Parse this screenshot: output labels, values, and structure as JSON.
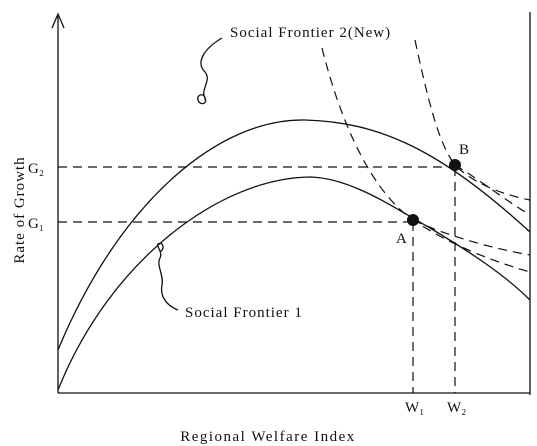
{
  "curves": {
    "frontier_2": "Social Frontier 2(New)",
    "frontier_1": "Social Frontier 1"
  },
  "axes": {
    "y_label": "Rate of Growth",
    "x_label": "Regional Welfare Index"
  },
  "points": {
    "a": "A",
    "b": "B"
  },
  "y_levels": {
    "g2": "G₂",
    "g1": "G₁"
  },
  "x_levels": {
    "w1": "W₁",
    "w2": "W₂"
  }
}
